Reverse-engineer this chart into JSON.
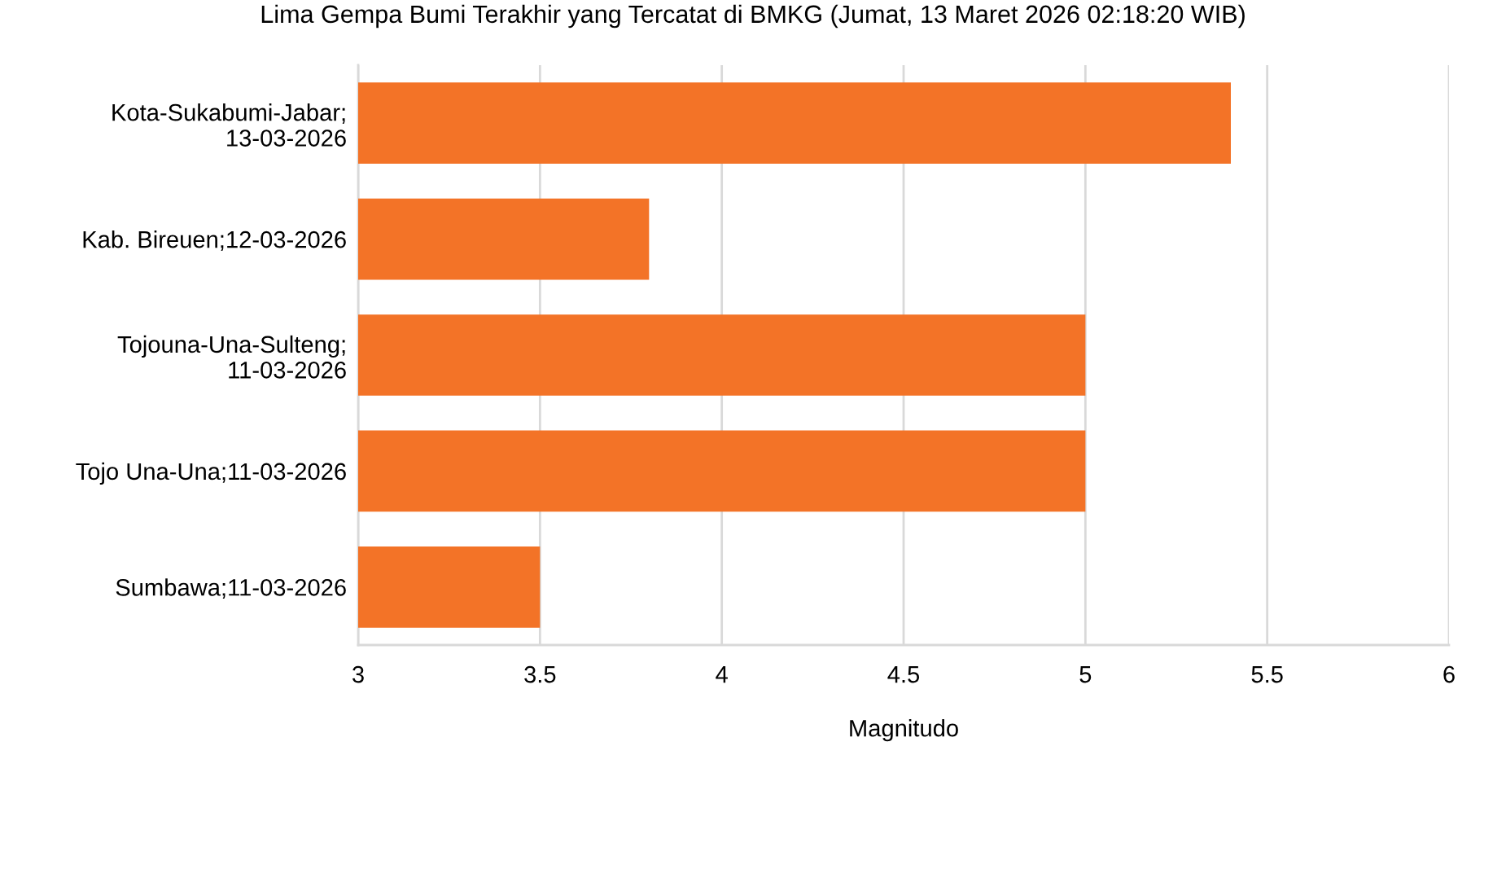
{
  "chart_data": {
    "type": "bar",
    "orientation": "horizontal",
    "title": "Lima Gempa Bumi Terakhir yang Tercatat di BMKG (Jumat, 13 Maret 2026 02:18:20 WIB)",
    "xlabel": "Magnitudo",
    "categories": [
      "Kota-Sukabumi-Jabar;\n13-03-2026",
      "Kab. Bireuen;12-03-2026",
      "Tojouna-Una-Sulteng;\n11-03-2026",
      "Tojo Una-Una;11-03-2026",
      "Sumbawa;11-03-2026"
    ],
    "values": [
      5.4,
      3.8,
      5,
      5,
      3.5
    ],
    "color": "#f37327",
    "xlim": [
      3,
      6
    ],
    "xticks": [
      3,
      3.5,
      4,
      4.5,
      5,
      5.5,
      6
    ],
    "grid": "x",
    "legend": false
  }
}
